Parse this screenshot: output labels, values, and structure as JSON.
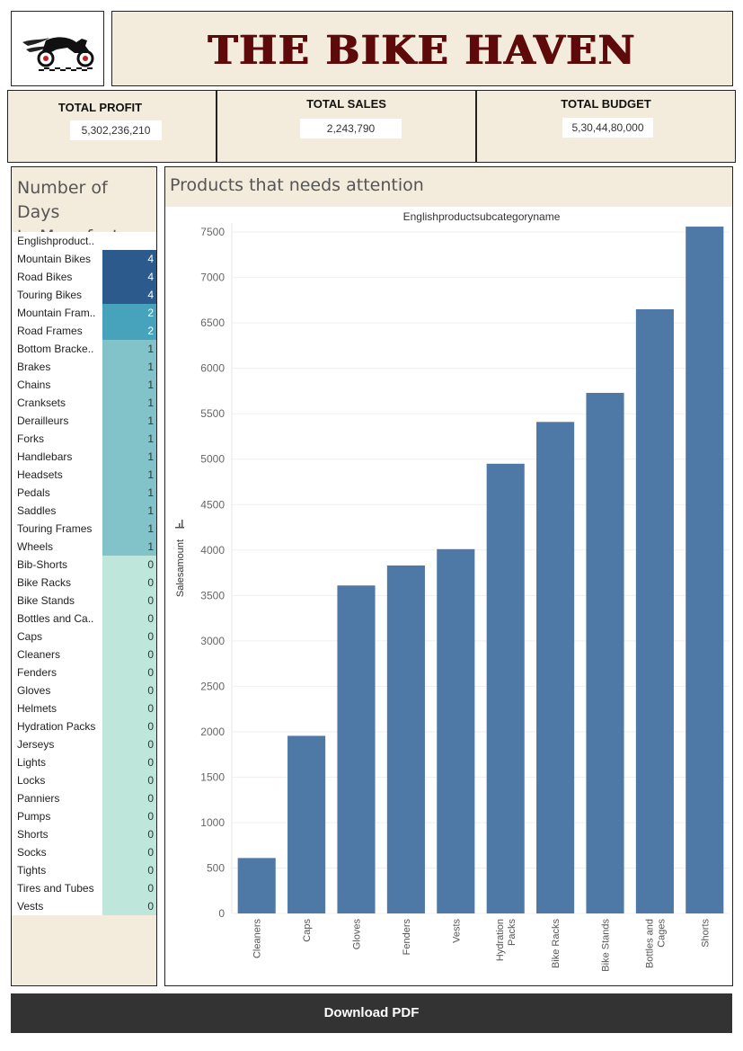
{
  "header": {
    "title": "THE BIKE HAVEN",
    "logo_icon": "motorcycle-logo-icon"
  },
  "kpis": {
    "profit_label": "TOTAL PROFIT",
    "profit_value": "5,302,236,210",
    "sales_label": "TOTAL SALES",
    "sales_value": "2,243,790",
    "budget_label": "TOTAL BUDGET",
    "budget_value": "5,30,44,80,000"
  },
  "days_table": {
    "title_line1": "Number of Days",
    "title_line2": "to Manufacture",
    "column_header": "Englishproduct..",
    "colors": {
      "4": "#2c5a8c",
      "2": "#47a2bb",
      "1": "#82c3c9",
      "0": "#bfe6da"
    },
    "rows": [
      {
        "name": "Mountain Bikes",
        "value": 4
      },
      {
        "name": "Road Bikes",
        "value": 4
      },
      {
        "name": "Touring Bikes",
        "value": 4
      },
      {
        "name": "Mountain Fram..",
        "value": 2
      },
      {
        "name": "Road Frames",
        "value": 2
      },
      {
        "name": "Bottom Bracke..",
        "value": 1
      },
      {
        "name": "Brakes",
        "value": 1
      },
      {
        "name": "Chains",
        "value": 1
      },
      {
        "name": "Cranksets",
        "value": 1
      },
      {
        "name": "Derailleurs",
        "value": 1
      },
      {
        "name": "Forks",
        "value": 1
      },
      {
        "name": "Handlebars",
        "value": 1
      },
      {
        "name": "Headsets",
        "value": 1
      },
      {
        "name": "Pedals",
        "value": 1
      },
      {
        "name": "Saddles",
        "value": 1
      },
      {
        "name": "Touring Frames",
        "value": 1
      },
      {
        "name": "Wheels",
        "value": 1
      },
      {
        "name": "Bib-Shorts",
        "value": 0
      },
      {
        "name": "Bike Racks",
        "value": 0
      },
      {
        "name": "Bike Stands",
        "value": 0
      },
      {
        "name": "Bottles and Ca..",
        "value": 0
      },
      {
        "name": "Caps",
        "value": 0
      },
      {
        "name": "Cleaners",
        "value": 0
      },
      {
        "name": "Fenders",
        "value": 0
      },
      {
        "name": "Gloves",
        "value": 0
      },
      {
        "name": "Helmets",
        "value": 0
      },
      {
        "name": "Hydration Packs",
        "value": 0
      },
      {
        "name": "Jerseys",
        "value": 0
      },
      {
        "name": "Lights",
        "value": 0
      },
      {
        "name": "Locks",
        "value": 0
      },
      {
        "name": "Panniers",
        "value": 0
      },
      {
        "name": "Pumps",
        "value": 0
      },
      {
        "name": "Shorts",
        "value": 0
      },
      {
        "name": "Socks",
        "value": 0
      },
      {
        "name": "Tights",
        "value": 0
      },
      {
        "name": "Tires and Tubes",
        "value": 0
      },
      {
        "name": "Vests",
        "value": 0
      }
    ]
  },
  "chart_panel": {
    "title": "Products that needs attention"
  },
  "chart_data": {
    "type": "bar",
    "title": "Englishproductsubcategoryname",
    "xlabel": "",
    "ylabel": "Salesamount",
    "ylim": [
      0,
      7600
    ],
    "yticks": [
      0,
      500,
      1000,
      1500,
      2000,
      2500,
      3000,
      3500,
      4000,
      4500,
      5000,
      5500,
      6000,
      6500,
      7000,
      7500
    ],
    "grid": true,
    "bar_color": "#4e79a7",
    "categories": [
      "Cleaners",
      "Caps",
      "Gloves",
      "Fenders",
      "Vests",
      "Hydration Packs",
      "Bike Racks",
      "Bike Stands",
      "Bottles and Cages",
      "Shorts"
    ],
    "category_lines": [
      [
        "Cleaners"
      ],
      [
        "Caps"
      ],
      [
        "Gloves"
      ],
      [
        "Fenders"
      ],
      [
        "Vests"
      ],
      [
        "Hydration",
        "Packs"
      ],
      [
        "Bike Racks"
      ],
      [
        "Bike Stands"
      ],
      [
        "Bottles and",
        "Cages"
      ],
      [
        "Shorts"
      ]
    ],
    "values": [
      610,
      1955,
      3610,
      3830,
      4010,
      4950,
      5410,
      5730,
      6650,
      7560
    ]
  },
  "download": {
    "label": "Download PDF"
  }
}
